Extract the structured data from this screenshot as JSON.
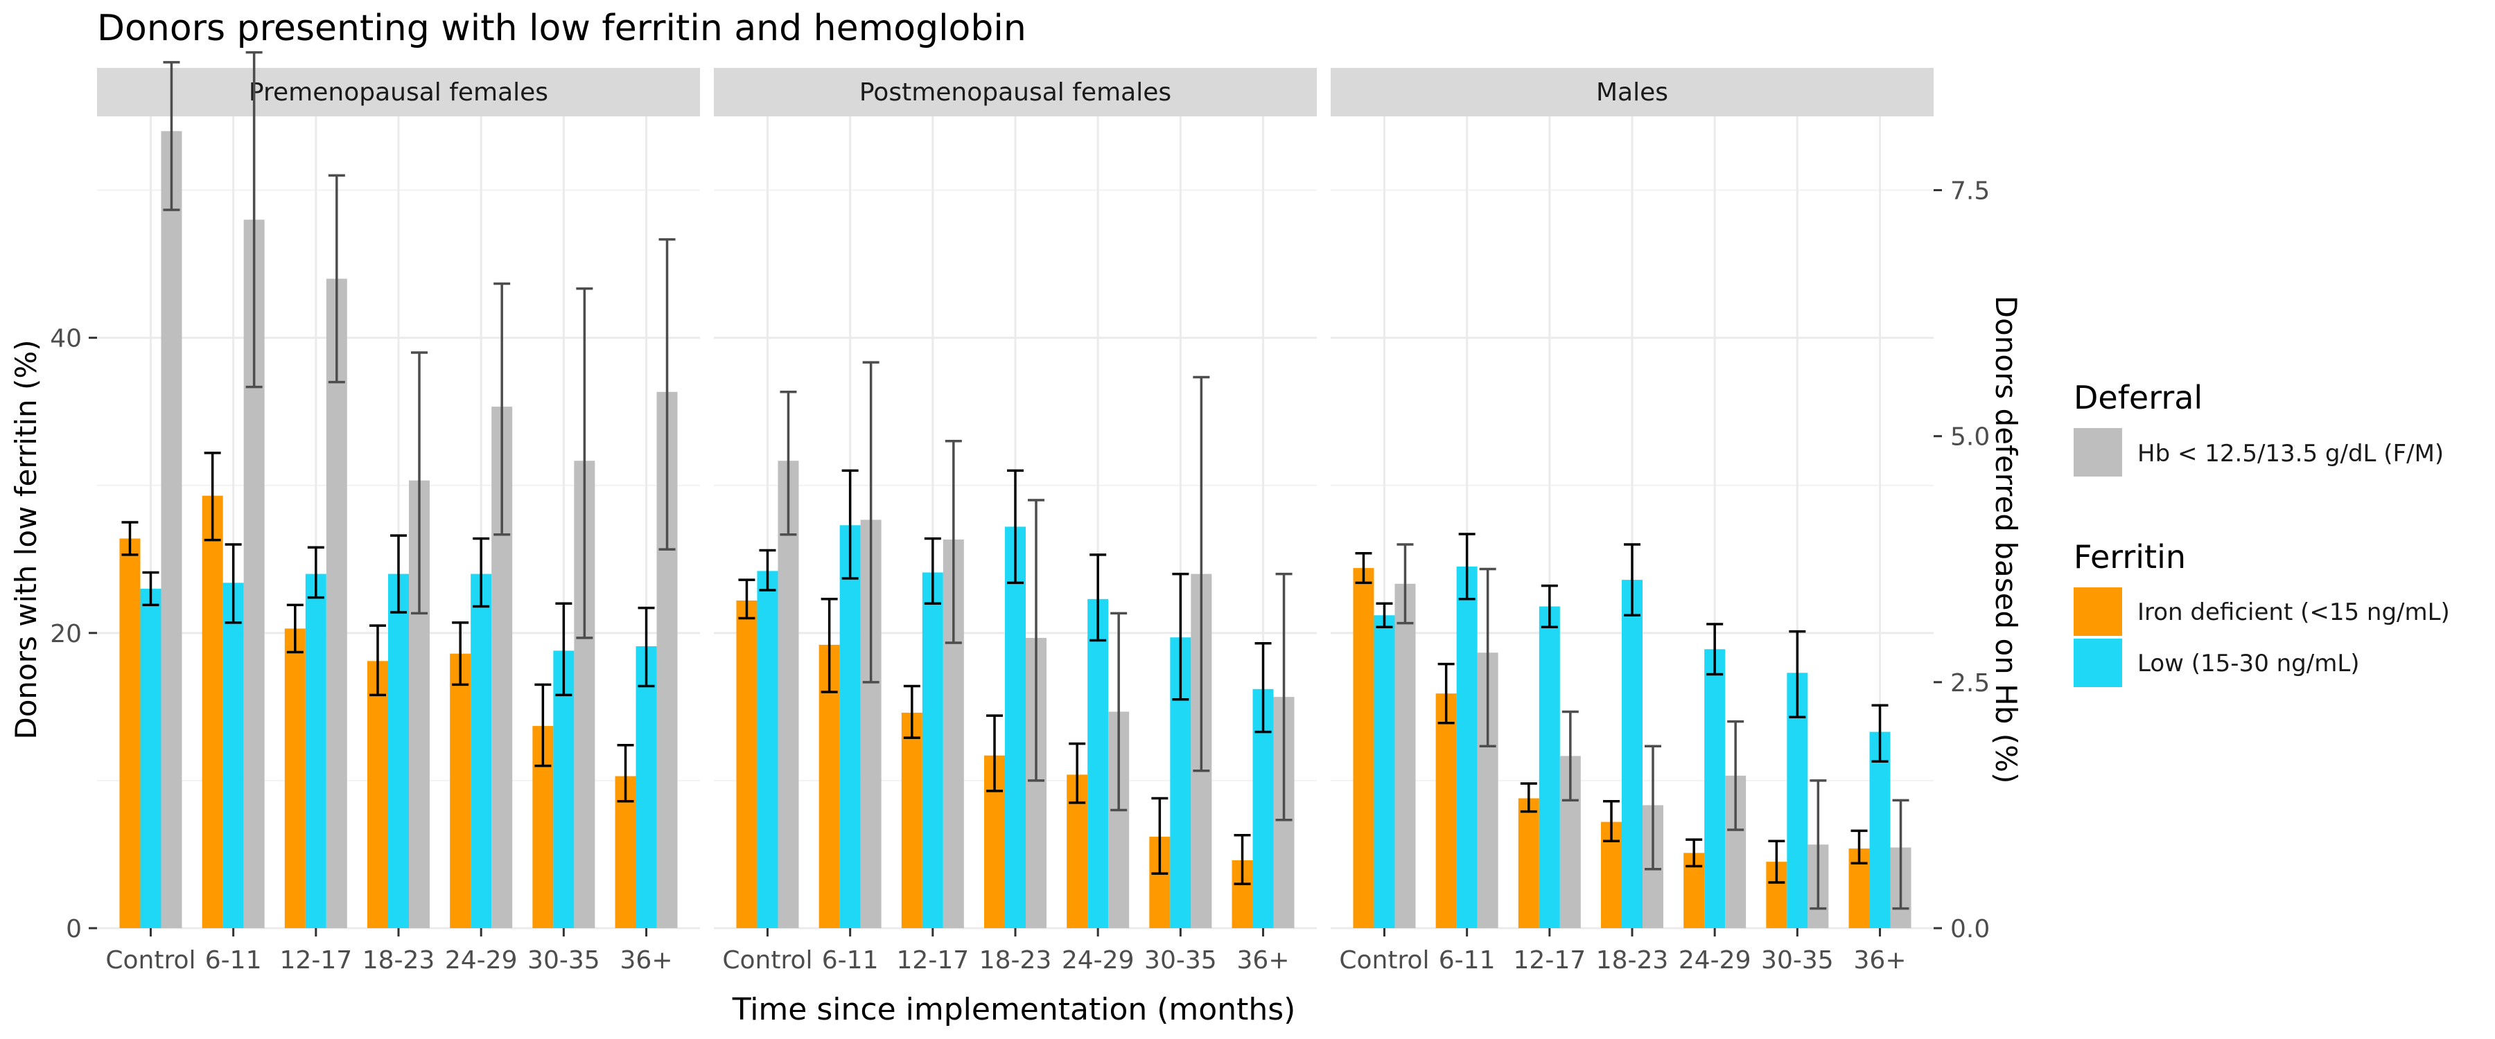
{
  "chart_data": {
    "type": "bar",
    "title": "Donors presenting with low ferritin and hemoglobin",
    "xlabel": "Time since implementation (months)",
    "ylabel_left": "Donors with low ferritin (%)",
    "ylabel_right": "Donors deferred based on Hb (%)",
    "categories": [
      "Control",
      "6-11",
      "12-17",
      "18-23",
      "24-29",
      "30-35",
      "36+"
    ],
    "ylim_left": [
      0,
      55
    ],
    "yticks_left": [
      0,
      20,
      40
    ],
    "ylim_right": [
      0,
      8.25
    ],
    "yticks_right": [
      0.0,
      2.5,
      5.0,
      7.5
    ],
    "yticks_right_labels": [
      "0.0",
      "2.5",
      "5.0",
      "7.5"
    ],
    "grid": true,
    "legend_position": "right",
    "legend": {
      "deferral_title": "Deferral",
      "deferral_items": [
        {
          "label": "Hb < 12.5/13.5 g/dL (F/M)",
          "color": "#bebebe"
        }
      ],
      "ferritin_title": "Ferritin",
      "ferritin_items": [
        {
          "label": "Iron deficient (<15 ng/mL)",
          "color": "#ff9900"
        },
        {
          "label": "Low (15-30 ng/mL)",
          "color": "#1fd8f5"
        }
      ]
    },
    "colors": {
      "iron_deficient": "#ff9900",
      "low": "#1fd8f5",
      "deferral": "#bebebe",
      "strip": "#d9d9d9",
      "grid_major": "#ebebeb",
      "grid_minor": "#f2f2f2",
      "errorbar_ferritin": "#000000",
      "errorbar_deferral": "#4d4d4d"
    },
    "panels": [
      {
        "label": "Premenopausal females",
        "iron_deficient": {
          "values": [
            26.4,
            29.3,
            20.3,
            18.1,
            18.6,
            13.7,
            10.3
          ],
          "lower": [
            25.3,
            26.3,
            18.7,
            15.8,
            16.5,
            11.0,
            8.6
          ],
          "upper": [
            27.5,
            32.2,
            21.9,
            20.5,
            20.7,
            16.5,
            12.4
          ]
        },
        "low": {
          "values": [
            23.0,
            23.4,
            24.0,
            24.0,
            24.0,
            18.8,
            19.1
          ],
          "lower": [
            21.9,
            20.7,
            22.4,
            21.4,
            21.8,
            15.8,
            16.4
          ],
          "upper": [
            24.1,
            26.0,
            25.8,
            26.6,
            26.4,
            22.0,
            21.7
          ]
        },
        "deferral": {
          "values": [
            8.1,
            7.2,
            6.6,
            4.55,
            5.3,
            4.75,
            5.45
          ],
          "lower": [
            7.3,
            5.5,
            5.55,
            3.2,
            4.0,
            2.95,
            3.85
          ],
          "upper": [
            8.8,
            8.9,
            7.65,
            5.85,
            6.55,
            6.5,
            7.0
          ]
        }
      },
      {
        "label": "Postmenopausal females",
        "iron_deficient": {
          "values": [
            22.2,
            19.2,
            14.6,
            11.7,
            10.4,
            6.2,
            4.6
          ],
          "lower": [
            21.0,
            16.0,
            12.9,
            9.3,
            8.5,
            3.7,
            3.0
          ],
          "upper": [
            23.6,
            22.3,
            16.4,
            14.4,
            12.5,
            8.8,
            6.3
          ]
        },
        "low": {
          "values": [
            24.2,
            27.3,
            24.1,
            27.2,
            22.3,
            19.7,
            16.2
          ],
          "lower": [
            22.9,
            23.7,
            22.0,
            23.4,
            19.5,
            15.5,
            13.3
          ],
          "upper": [
            25.6,
            31.0,
            26.4,
            31.0,
            25.3,
            24.0,
            19.3
          ]
        },
        "deferral": {
          "values": [
            4.75,
            4.15,
            3.95,
            2.95,
            2.2,
            3.6,
            2.35
          ],
          "lower": [
            4.0,
            2.5,
            2.9,
            1.5,
            1.2,
            1.6,
            1.1
          ],
          "upper": [
            5.45,
            5.75,
            4.95,
            4.35,
            3.2,
            5.6,
            3.6
          ]
        }
      },
      {
        "label": "Males",
        "iron_deficient": {
          "values": [
            24.4,
            15.9,
            8.8,
            7.2,
            5.1,
            4.5,
            5.4
          ],
          "lower": [
            23.4,
            13.9,
            7.9,
            5.9,
            4.2,
            3.1,
            4.4
          ],
          "upper": [
            25.4,
            17.9,
            9.8,
            8.6,
            6.0,
            5.9,
            6.6
          ]
        },
        "low": {
          "values": [
            21.2,
            24.5,
            21.8,
            23.6,
            18.9,
            17.3,
            13.3
          ],
          "lower": [
            20.4,
            22.3,
            20.4,
            21.2,
            17.2,
            14.3,
            11.3
          ],
          "upper": [
            22.0,
            26.7,
            23.2,
            26.0,
            20.6,
            20.1,
            15.1
          ]
        },
        "deferral": {
          "values": [
            3.5,
            2.8,
            1.75,
            1.25,
            1.55,
            0.85,
            0.82
          ],
          "lower": [
            3.1,
            1.85,
            1.3,
            0.6,
            1.0,
            0.2,
            0.2
          ],
          "upper": [
            3.9,
            3.65,
            2.2,
            1.85,
            2.1,
            1.5,
            1.3
          ]
        }
      }
    ]
  }
}
